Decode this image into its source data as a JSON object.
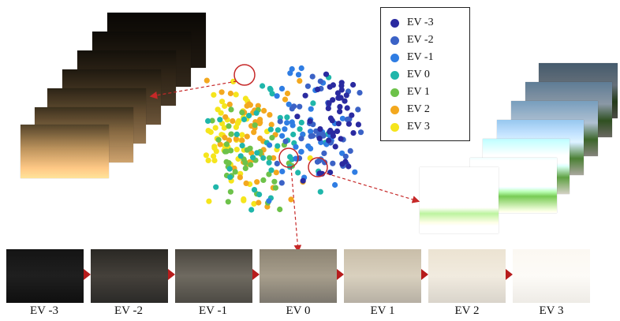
{
  "legend": {
    "entries": [
      {
        "label": "EV -3",
        "color": "#2a2aa0"
      },
      {
        "label": "EV -2",
        "color": "#3b62c6"
      },
      {
        "label": "EV -1",
        "color": "#2f7de3"
      },
      {
        "label": "EV 0",
        "color": "#1fb6aa"
      },
      {
        "label": "EV 1",
        "color": "#6dc24a"
      },
      {
        "label": "EV 2",
        "color": "#f3a81e"
      },
      {
        "label": "EV 3",
        "color": "#f5e51c"
      }
    ]
  },
  "bottom_labels": [
    "EV -3",
    "EV -2",
    "EV -1",
    "EV 0",
    "EV 1",
    "EV 2",
    "EV 3"
  ],
  "colors": {
    "accent_red": "#c62828",
    "arrow_red": "#b71c1c"
  }
}
